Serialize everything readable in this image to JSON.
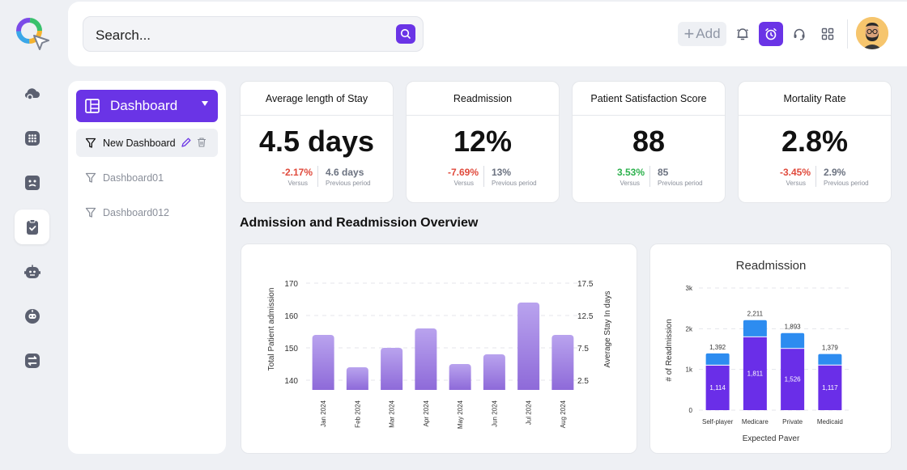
{
  "app": {
    "logo": "app-logo"
  },
  "rail": {
    "items": [
      {
        "icon": "cloud-icon",
        "active": false
      },
      {
        "icon": "grid-icon",
        "active": false
      },
      {
        "icon": "face-board-icon",
        "active": false
      },
      {
        "icon": "clipboard-check-icon",
        "active": true
      },
      {
        "icon": "robot-face-icon",
        "active": false
      },
      {
        "icon": "bot-chat-icon",
        "active": false
      },
      {
        "icon": "workflow-icon",
        "active": false
      }
    ]
  },
  "topbar": {
    "search_placeholder": "Search...",
    "add_label": "Add",
    "icons": [
      "bell-icon",
      "alarm-clock-icon",
      "headset-icon",
      "apps-grid-icon"
    ],
    "accent": "#6a34e6"
  },
  "sidebar": {
    "dashboard_label": "Dashboard",
    "items": [
      {
        "label": "New Dashboard",
        "selected": true
      },
      {
        "label": "Dashboard01",
        "selected": false
      },
      {
        "label": "Dashboard012",
        "selected": false
      }
    ]
  },
  "kpis": [
    {
      "title": "Average length of Stay",
      "value": "4.5 days",
      "change": "-2.17%",
      "change_dir": "neg",
      "versus": "Versus",
      "prev": "4.6 days",
      "prev_label": "Previous period"
    },
    {
      "title": "Readmission",
      "value": "12%",
      "change": "-7.69%",
      "change_dir": "neg",
      "versus": "Versus",
      "prev": "13%",
      "prev_label": "Previous period"
    },
    {
      "title": "Patient Satisfaction Score",
      "value": "88",
      "change": "3.53%",
      "change_dir": "pos",
      "versus": "Versus",
      "prev": "85",
      "prev_label": "Previous period"
    },
    {
      "title": "Mortality Rate",
      "value": "2.8%",
      "change": "-3.45%",
      "change_dir": "neg",
      "versus": "Versus",
      "prev": "2.9%",
      "prev_label": "Previous period"
    }
  ],
  "section_title": "Admission and Readmission Overview",
  "chart_data": [
    {
      "type": "bar",
      "title": "",
      "categories": [
        "Jan 2024",
        "Feb 2024",
        "Mar 2024",
        "Apr 2024",
        "May 2024",
        "Jun 2024",
        "Jul 2024",
        "Aug 2024"
      ],
      "values": [
        154,
        144,
        150,
        156,
        145,
        148,
        164,
        154
      ],
      "ylabel": "Total Patient admission",
      "y2label": "Average Stay In days",
      "yticks": [
        140,
        150,
        160,
        170
      ],
      "y2ticks": [
        2.5,
        7.5,
        12.5,
        17.5
      ],
      "ylim": [
        137,
        172
      ],
      "grid": true,
      "color": "#9b7fe0"
    },
    {
      "type": "bar",
      "title": "Readmission",
      "categories": [
        "Self-player",
        "Medicare",
        "Private",
        "Medicaid"
      ],
      "series": [
        {
          "values": [
            1114,
            1811,
            1526,
            1117
          ],
          "color": "#6a2ee8"
        },
        {
          "values": [
            278,
            400,
            367,
            262
          ],
          "color": "#2d8cf0"
        }
      ],
      "totals": [
        1392,
        2211,
        1893,
        1379
      ],
      "bottom_labels": [
        "1,114",
        "1,811",
        "1,526",
        "1,117"
      ],
      "total_labels": [
        "1,392",
        "2,211",
        "1,893",
        "1,379"
      ],
      "xlabel": "Expected Paver",
      "ylabel": "# of Readmission",
      "yticks": [
        "0",
        "1k",
        "2k",
        "3k"
      ],
      "ylim": [
        0,
        3000
      ],
      "stacked": true
    }
  ]
}
